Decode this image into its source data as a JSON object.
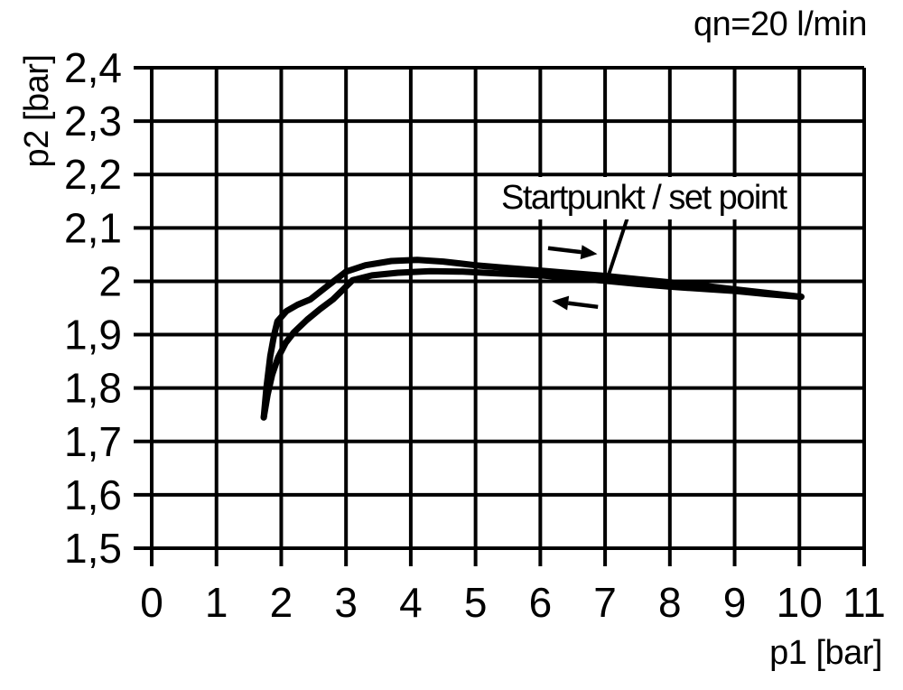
{
  "page": {
    "background": "#ffffff",
    "foreground": "#000000"
  },
  "chart_data": {
    "type": "line",
    "flow_label": "qn=20 l/min",
    "xlabel": "p1 [bar]",
    "ylabel": "p2 [bar]",
    "xlim": [
      0,
      11
    ],
    "ylim": [
      1.5,
      2.4
    ],
    "grid": true,
    "x_ticks": [
      {
        "value": 0,
        "label": "0"
      },
      {
        "value": 1,
        "label": "1"
      },
      {
        "value": 2,
        "label": "2"
      },
      {
        "value": 3,
        "label": "3"
      },
      {
        "value": 4,
        "label": "4"
      },
      {
        "value": 5,
        "label": "5"
      },
      {
        "value": 6,
        "label": "6"
      },
      {
        "value": 7,
        "label": "7"
      },
      {
        "value": 8,
        "label": "8"
      },
      {
        "value": 9,
        "label": "9"
      },
      {
        "value": 10,
        "label": "10"
      },
      {
        "value": 11,
        "label": "11"
      }
    ],
    "y_ticks": [
      {
        "value": 2.4,
        "label": "2,4"
      },
      {
        "value": 2.3,
        "label": "2,3"
      },
      {
        "value": 2.2,
        "label": "2,2"
      },
      {
        "value": 2.1,
        "label": "2,1"
      },
      {
        "value": 2.0,
        "label": "2"
      },
      {
        "value": 1.9,
        "label": "1,9"
      },
      {
        "value": 1.8,
        "label": "1,8"
      },
      {
        "value": 1.7,
        "label": "1,7"
      },
      {
        "value": 1.6,
        "label": "1,6"
      },
      {
        "value": 1.5,
        "label": "1,5"
      }
    ],
    "annotation": {
      "label": "Startpunkt / set point",
      "leader_from": [
        7.34,
        2.117
      ],
      "leader_to": [
        7.06,
        2.014
      ]
    },
    "direction_arrows": [
      {
        "direction": "right",
        "tail": [
          6.12,
          2.062
        ],
        "tip": [
          6.88,
          2.051
        ]
      },
      {
        "direction": "left",
        "tail": [
          6.89,
          1.952
        ],
        "tip": [
          6.18,
          1.963
        ]
      }
    ],
    "series": [
      {
        "name": "branch-upper",
        "points": [
          [
            1.73,
            1.745
          ],
          [
            1.77,
            1.8
          ],
          [
            1.83,
            1.86
          ],
          [
            1.89,
            1.9
          ],
          [
            1.94,
            1.925
          ],
          [
            2.08,
            1.944
          ],
          [
            2.25,
            1.956
          ],
          [
            2.45,
            1.966
          ],
          [
            2.7,
            1.99
          ],
          [
            3.0,
            2.018
          ],
          [
            3.3,
            2.03
          ],
          [
            3.7,
            2.038
          ],
          [
            4.1,
            2.04
          ],
          [
            4.5,
            2.037
          ],
          [
            5.0,
            2.03
          ],
          [
            5.5,
            2.025
          ],
          [
            6.0,
            2.02
          ],
          [
            6.5,
            2.015
          ],
          [
            7.0,
            2.01
          ],
          [
            7.5,
            2.004
          ],
          [
            8.0,
            1.998
          ],
          [
            8.5,
            1.992
          ],
          [
            9.0,
            1.985
          ],
          [
            9.5,
            1.978
          ],
          [
            10.03,
            1.971
          ]
        ]
      },
      {
        "name": "branch-lower",
        "points": [
          [
            1.73,
            1.745
          ],
          [
            1.79,
            1.788
          ],
          [
            1.86,
            1.825
          ],
          [
            1.95,
            1.857
          ],
          [
            2.07,
            1.885
          ],
          [
            2.2,
            1.905
          ],
          [
            2.4,
            1.928
          ],
          [
            2.6,
            1.948
          ],
          [
            2.8,
            1.966
          ],
          [
            3.1,
            2.002
          ],
          [
            3.4,
            2.011
          ],
          [
            3.8,
            2.016
          ],
          [
            4.3,
            2.019
          ],
          [
            4.8,
            2.018
          ],
          [
            5.3,
            2.015
          ],
          [
            6.0,
            2.011
          ],
          [
            6.5,
            2.006
          ],
          [
            7.0,
            2.001
          ],
          [
            7.5,
            1.995
          ],
          [
            8.0,
            1.99
          ],
          [
            8.6,
            1.985
          ],
          [
            9.0,
            1.982
          ],
          [
            9.5,
            1.976
          ],
          [
            10.03,
            1.971
          ]
        ]
      }
    ]
  }
}
